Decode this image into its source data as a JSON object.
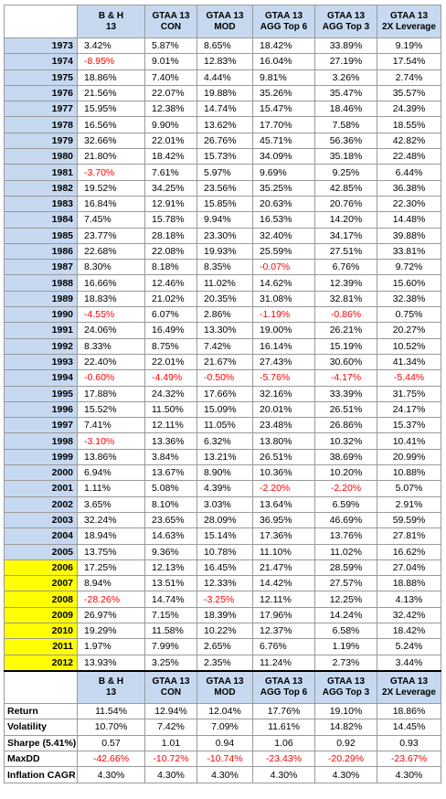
{
  "headers": [
    "",
    "B & H\n13",
    "GTAA 13\nCON",
    "GTAA 13\nMOD",
    "GTAA 13\nAGG Top 6",
    "GTAA 13\nAGG Top 3",
    "GTAA 13\n2X Leverage"
  ],
  "highlight_color": "#ffff00",
  "label_color": "#c6d9f0",
  "negative_color": "#ff0000",
  "rows": [
    {
      "year": "1973",
      "vals": [
        "3.42%",
        "5.87%",
        "8.65%",
        "18.42%",
        "33.89%",
        "9.19%"
      ]
    },
    {
      "year": "1974",
      "vals": [
        "-8.95%",
        "9.01%",
        "12.83%",
        "16.04%",
        "27.19%",
        "17.54%"
      ]
    },
    {
      "year": "1975",
      "vals": [
        "18.86%",
        "7.40%",
        "4.44%",
        "9.81%",
        "3.26%",
        "2.74%"
      ]
    },
    {
      "year": "1976",
      "vals": [
        "21.56%",
        "22.07%",
        "19.88%",
        "35.26%",
        "35.47%",
        "35.57%"
      ]
    },
    {
      "year": "1977",
      "vals": [
        "15.95%",
        "12.38%",
        "14.74%",
        "15.47%",
        "18.46%",
        "24.39%"
      ]
    },
    {
      "year": "1978",
      "vals": [
        "16.56%",
        "9.90%",
        "13.62%",
        "17.70%",
        "7.58%",
        "18.55%"
      ]
    },
    {
      "year": "1979",
      "vals": [
        "32.66%",
        "22.01%",
        "26.76%",
        "45.71%",
        "56.36%",
        "42.82%"
      ]
    },
    {
      "year": "1980",
      "vals": [
        "21.80%",
        "18.42%",
        "15.73%",
        "34.09%",
        "35.18%",
        "22.48%"
      ]
    },
    {
      "year": "1981",
      "vals": [
        "-3.70%",
        "7.61%",
        "5.97%",
        "9.69%",
        "9.25%",
        "6.44%"
      ]
    },
    {
      "year": "1982",
      "vals": [
        "19.52%",
        "34.25%",
        "23.56%",
        "35.25%",
        "42.85%",
        "36.38%"
      ]
    },
    {
      "year": "1983",
      "vals": [
        "16.84%",
        "12.91%",
        "15.85%",
        "20.63%",
        "20.76%",
        "22.30%"
      ]
    },
    {
      "year": "1984",
      "vals": [
        "7.45%",
        "15.78%",
        "9.94%",
        "16.53%",
        "14.20%",
        "14.48%"
      ]
    },
    {
      "year": "1985",
      "vals": [
        "23.77%",
        "28.18%",
        "23.30%",
        "32.40%",
        "34.17%",
        "39.88%"
      ]
    },
    {
      "year": "1986",
      "vals": [
        "22.68%",
        "22.08%",
        "19.93%",
        "25.59%",
        "27.51%",
        "33.81%"
      ]
    },
    {
      "year": "1987",
      "vals": [
        "8.30%",
        "8.18%",
        "8.35%",
        "-0.07%",
        "6.76%",
        "9.72%"
      ]
    },
    {
      "year": "1988",
      "vals": [
        "16.66%",
        "12.46%",
        "11.02%",
        "14.62%",
        "12.39%",
        "15.60%"
      ]
    },
    {
      "year": "1989",
      "vals": [
        "18.83%",
        "21.02%",
        "20.35%",
        "31.08%",
        "32.81%",
        "32.38%"
      ]
    },
    {
      "year": "1990",
      "vals": [
        "-4.55%",
        "6.07%",
        "2.86%",
        "-1.19%",
        "-0.86%",
        "0.75%"
      ]
    },
    {
      "year": "1991",
      "vals": [
        "24.06%",
        "16.49%",
        "13.30%",
        "19.00%",
        "26.21%",
        "20.27%"
      ]
    },
    {
      "year": "1992",
      "vals": [
        "8.33%",
        "8.75%",
        "7.42%",
        "16.14%",
        "15.19%",
        "10.52%"
      ]
    },
    {
      "year": "1993",
      "vals": [
        "22.40%",
        "22.01%",
        "21.67%",
        "27.43%",
        "30.60%",
        "41.34%"
      ]
    },
    {
      "year": "1994",
      "vals": [
        "-0.60%",
        "-4.49%",
        "-0.50%",
        "-5.76%",
        "-4.17%",
        "-5.44%"
      ]
    },
    {
      "year": "1995",
      "vals": [
        "17.88%",
        "24.32%",
        "17.66%",
        "32.16%",
        "33.39%",
        "31.75%"
      ]
    },
    {
      "year": "1996",
      "vals": [
        "15.52%",
        "11.50%",
        "15.09%",
        "20.01%",
        "26.51%",
        "24.17%"
      ]
    },
    {
      "year": "1997",
      "vals": [
        "7.41%",
        "12.11%",
        "11.05%",
        "23.48%",
        "26.86%",
        "15.37%"
      ]
    },
    {
      "year": "1998",
      "vals": [
        "-3.10%",
        "13.36%",
        "6.32%",
        "13.80%",
        "10.32%",
        "10.41%"
      ]
    },
    {
      "year": "1999",
      "vals": [
        "13.86%",
        "3.84%",
        "13.21%",
        "26.51%",
        "38.69%",
        "20.99%"
      ]
    },
    {
      "year": "2000",
      "vals": [
        "6.94%",
        "13.67%",
        "8.90%",
        "10.36%",
        "10.20%",
        "10.88%"
      ]
    },
    {
      "year": "2001",
      "vals": [
        "1.11%",
        "5.08%",
        "4.39%",
        "-2.20%",
        "-2.20%",
        "5.07%"
      ]
    },
    {
      "year": "2002",
      "vals": [
        "3.65%",
        "8.10%",
        "3.03%",
        "13.64%",
        "6.59%",
        "2.91%"
      ]
    },
    {
      "year": "2003",
      "vals": [
        "32.24%",
        "23.65%",
        "28.09%",
        "36.95%",
        "46.69%",
        "59.59%"
      ]
    },
    {
      "year": "2004",
      "vals": [
        "18.94%",
        "14.63%",
        "15.14%",
        "17.36%",
        "13.76%",
        "27.81%"
      ]
    },
    {
      "year": "2005",
      "vals": [
        "13.75%",
        "9.36%",
        "10.78%",
        "11.10%",
        "11.02%",
        "16.62%"
      ]
    },
    {
      "year": "2006",
      "hl": true,
      "vals": [
        "17.25%",
        "12.13%",
        "16.45%",
        "21.47%",
        "28.59%",
        "27.04%"
      ]
    },
    {
      "year": "2007",
      "hl": true,
      "vals": [
        "8.94%",
        "13.51%",
        "12.33%",
        "14.42%",
        "27.57%",
        "18.88%"
      ]
    },
    {
      "year": "2008",
      "hl": true,
      "vals": [
        "-28.26%",
        "14.74%",
        "-3.25%",
        "12.11%",
        "12.25%",
        "4.13%"
      ]
    },
    {
      "year": "2009",
      "hl": true,
      "vals": [
        "26.97%",
        "7.15%",
        "18.39%",
        "17.96%",
        "14.24%",
        "32.42%"
      ]
    },
    {
      "year": "2010",
      "hl": true,
      "vals": [
        "19.29%",
        "11.58%",
        "10.22%",
        "12.37%",
        "6.58%",
        "18.42%"
      ]
    },
    {
      "year": "2011",
      "hl": true,
      "vals": [
        "1.97%",
        "7.99%",
        "2.65%",
        "6.76%",
        "1.19%",
        "5.24%"
      ]
    },
    {
      "year": "2012",
      "hl": true,
      "vals": [
        "13.93%",
        "3.25%",
        "2.35%",
        "11.24%",
        "2.73%",
        "3.44%"
      ]
    }
  ],
  "stats": [
    {
      "label": "Return",
      "vals": [
        "11.54%",
        "12.94%",
        "12.04%",
        "17.76%",
        "19.10%",
        "18.86%"
      ]
    },
    {
      "label": "Volatility",
      "vals": [
        "10.70%",
        "7.42%",
        "7.09%",
        "11.61%",
        "14.82%",
        "14.45%"
      ]
    },
    {
      "label": "Sharpe (5.41%)",
      "vals": [
        "0.57",
        "1.01",
        "0.94",
        "1.06",
        "0.92",
        "0.93"
      ]
    },
    {
      "label": "MaxDD",
      "vals": [
        "-42.66%",
        "-10.72%",
        "-10.74%",
        "-23.43%",
        "-20.29%",
        "-23.67%"
      ]
    },
    {
      "label": "Inflation CAGR",
      "vals": [
        "4.30%",
        "4.30%",
        "4.30%",
        "4.30%",
        "4.30%",
        "4.30%"
      ]
    }
  ]
}
